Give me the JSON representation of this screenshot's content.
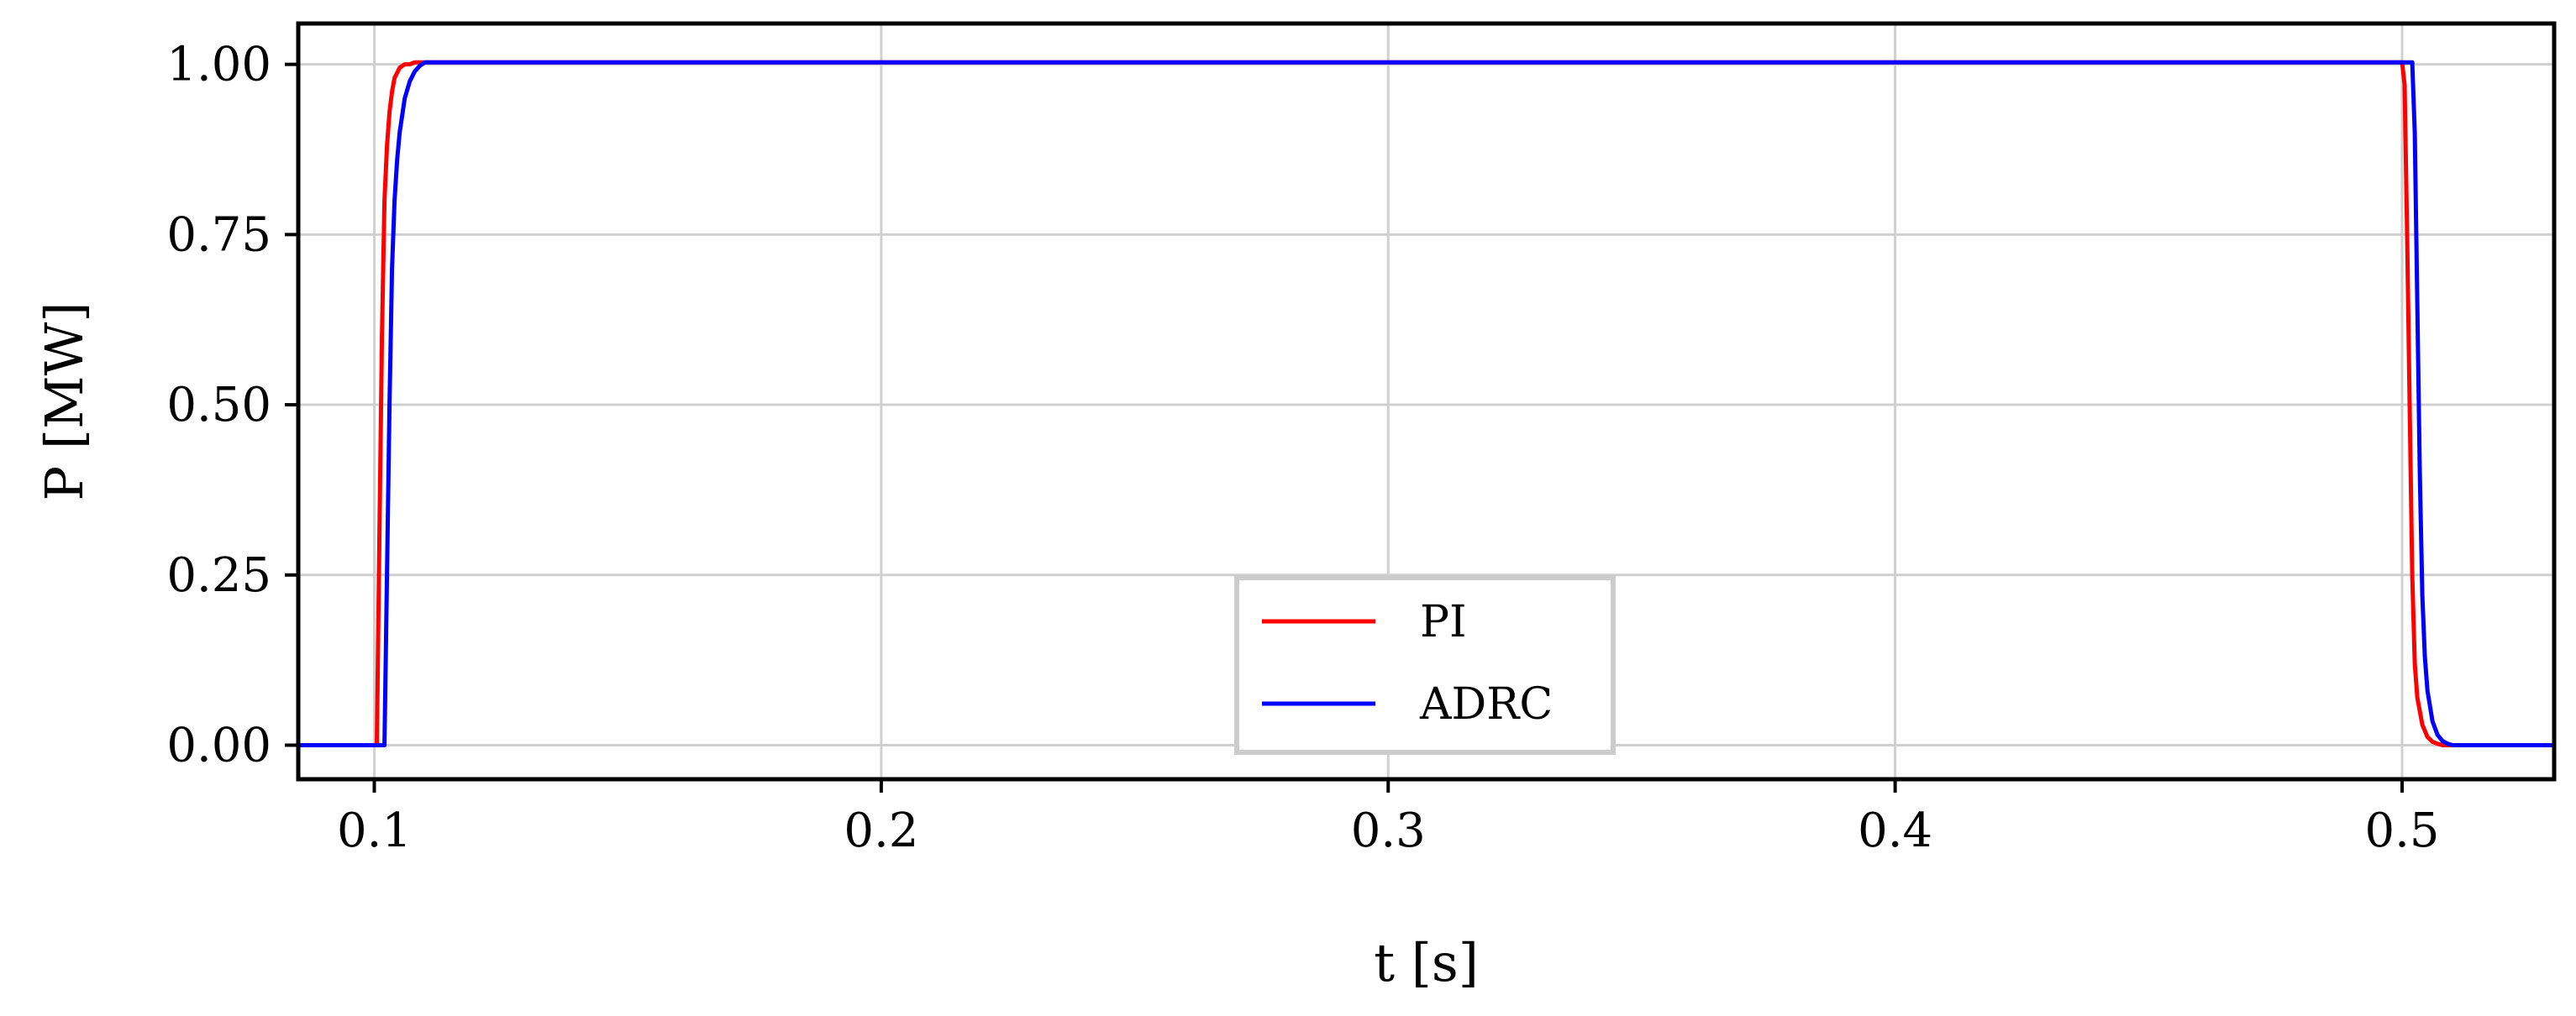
{
  "chart_data": {
    "type": "line",
    "xlabel": "t [s]",
    "ylabel": "P [MW]",
    "xlim": [
      0.085,
      0.53
    ],
    "ylim": [
      -0.05,
      1.06
    ],
    "xticks": [
      0.1,
      0.2,
      0.3,
      0.4,
      0.5
    ],
    "xtick_labels": [
      "0.1",
      "0.2",
      "0.3",
      "0.4",
      "0.5"
    ],
    "yticks": [
      0.0,
      0.25,
      0.5,
      0.75,
      1.0
    ],
    "ytick_labels": [
      "0.00",
      "0.25",
      "0.50",
      "0.75",
      "1.00"
    ],
    "grid": true,
    "legend_position": "bottom-center",
    "series": [
      {
        "name": "PI",
        "color": "#ff0000",
        "x": [
          0.085,
          0.1005,
          0.101,
          0.1015,
          0.102,
          0.1025,
          0.103,
          0.1035,
          0.104,
          0.105,
          0.106,
          0.107,
          0.108,
          0.11,
          0.5,
          0.5005,
          0.501,
          0.5015,
          0.502,
          0.5025,
          0.503,
          0.504,
          0.505,
          0.506,
          0.507,
          0.508,
          0.53
        ],
        "y": [
          0.0,
          0.0,
          0.3,
          0.6,
          0.8,
          0.88,
          0.93,
          0.96,
          0.98,
          0.995,
          1.0,
          1.0,
          1.003,
          1.003,
          1.003,
          0.97,
          0.75,
          0.5,
          0.25,
          0.12,
          0.07,
          0.03,
          0.012,
          0.005,
          0.002,
          0.0,
          0.0
        ]
      },
      {
        "name": "ADRC",
        "color": "#0000ff",
        "x": [
          0.085,
          0.102,
          0.1025,
          0.103,
          0.1035,
          0.104,
          0.1045,
          0.105,
          0.106,
          0.107,
          0.108,
          0.109,
          0.11,
          0.112,
          0.5,
          0.502,
          0.5025,
          0.503,
          0.5035,
          0.504,
          0.5045,
          0.505,
          0.506,
          0.507,
          0.508,
          0.509,
          0.51,
          0.53
        ],
        "y": [
          0.0,
          0.0,
          0.25,
          0.5,
          0.7,
          0.8,
          0.86,
          0.9,
          0.95,
          0.975,
          0.99,
          0.998,
          1.003,
          1.003,
          1.003,
          1.003,
          0.9,
          0.65,
          0.4,
          0.22,
          0.13,
          0.08,
          0.035,
          0.015,
          0.006,
          0.002,
          0.0,
          0.0
        ]
      }
    ]
  }
}
